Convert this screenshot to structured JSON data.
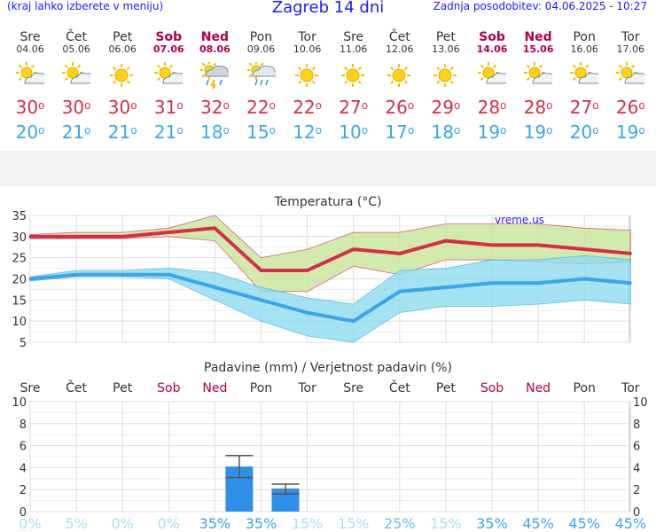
{
  "header": {
    "menu_hint": "(kraj lahko izberete v meniju)",
    "title": "Zagreb 14 dni",
    "updated": "Zadnja posodobitev: 04.06.2025 - 10:27"
  },
  "days": [
    {
      "name": "Sre",
      "date": "04.06",
      "icon": "sun-cloud-icon",
      "tmax": "30",
      "tmin": "20",
      "weekend": false
    },
    {
      "name": "Čet",
      "date": "05.06",
      "icon": "sun-cloud-icon",
      "tmax": "30",
      "tmin": "21",
      "weekend": false
    },
    {
      "name": "Pet",
      "date": "06.06",
      "icon": "sun-icon",
      "tmax": "30",
      "tmin": "21",
      "weekend": false
    },
    {
      "name": "Sob",
      "date": "07.06",
      "icon": "sun-cloud-icon",
      "tmax": "31",
      "tmin": "21",
      "weekend": true
    },
    {
      "name": "Ned",
      "date": "08.06",
      "icon": "thunderstorm-icon",
      "tmax": "32",
      "tmin": "18",
      "weekend": true
    },
    {
      "name": "Pon",
      "date": "09.06",
      "icon": "sun-rain-icon",
      "tmax": "22",
      "tmin": "15",
      "weekend": false
    },
    {
      "name": "Tor",
      "date": "10.06",
      "icon": "sun-icon",
      "tmax": "22",
      "tmin": "12",
      "weekend": false
    },
    {
      "name": "Sre",
      "date": "11.06",
      "icon": "sun-icon",
      "tmax": "27",
      "tmin": "10",
      "weekend": false
    },
    {
      "name": "Čet",
      "date": "12.06",
      "icon": "sun-icon",
      "tmax": "26",
      "tmin": "17",
      "weekend": false
    },
    {
      "name": "Pet",
      "date": "13.06",
      "icon": "sun-icon",
      "tmax": "29",
      "tmin": "18",
      "weekend": false
    },
    {
      "name": "Sob",
      "date": "14.06",
      "icon": "sun-cloud-icon",
      "tmax": "28",
      "tmin": "19",
      "weekend": true
    },
    {
      "name": "Ned",
      "date": "15.06",
      "icon": "sun-cloud-icon",
      "tmax": "28",
      "tmin": "19",
      "weekend": true
    },
    {
      "name": "Pon",
      "date": "16.06",
      "icon": "sun-cloud-icon",
      "tmax": "27",
      "tmin": "20",
      "weekend": false
    },
    {
      "name": "Tor",
      "date": "17.06",
      "icon": "sun-cloud-icon",
      "tmax": "26",
      "tmin": "19",
      "weekend": false
    }
  ],
  "chart_data": [
    {
      "type": "line",
      "title": "Temperatura (°C)",
      "watermark": "vreme.us",
      "ylim": [
        5,
        35
      ],
      "yticks": [
        5,
        10,
        15,
        20,
        25,
        30,
        35
      ],
      "grid": true,
      "series": [
        {
          "key": "max",
          "color": "#d32f4a",
          "values": [
            30,
            30,
            30,
            31,
            32,
            22,
            22,
            27,
            26,
            29,
            28,
            28,
            27,
            26
          ],
          "band_low": [
            29.5,
            29.5,
            29.5,
            30,
            29,
            17,
            17,
            23,
            21,
            24.5,
            24.5,
            24,
            23.5,
            24
          ],
          "band_high": [
            30.5,
            31,
            31,
            32,
            35,
            25,
            27,
            31,
            31,
            33,
            33,
            33,
            32,
            31.5
          ],
          "band_color": "#c7e59a"
        },
        {
          "key": "min",
          "color": "#3aa5e8",
          "values": [
            20,
            21,
            21,
            21,
            18,
            15,
            12,
            10,
            17,
            18,
            19,
            19,
            20,
            19
          ],
          "band_low": [
            19.5,
            20.5,
            20.5,
            20,
            15,
            10,
            6.5,
            5,
            12,
            13.5,
            13.5,
            14,
            15,
            14
          ],
          "band_high": [
            20.5,
            22,
            22,
            22.5,
            21.5,
            18,
            15.5,
            14,
            22,
            22.5,
            24.5,
            24.5,
            25.5,
            24.5
          ],
          "band_color": "#8fdcef"
        }
      ]
    },
    {
      "type": "bar",
      "title": "Padavine (mm) / Verjetnost padavin (%)",
      "ylim": [
        0,
        10
      ],
      "yticks": [
        0,
        2,
        4,
        6,
        8,
        10
      ],
      "categories": [
        "Sre",
        "Čet",
        "Pet",
        "Sob",
        "Ned",
        "Pon",
        "Tor",
        "Sre",
        "Čet",
        "Pet",
        "Sob",
        "Ned",
        "Pon",
        "Tor"
      ],
      "weekend": [
        false,
        false,
        false,
        true,
        true,
        false,
        false,
        false,
        false,
        false,
        true,
        true,
        false,
        false
      ],
      "values": [
        0,
        0,
        0,
        0,
        4.1,
        2.1,
        0,
        0,
        0,
        0,
        0,
        0,
        0,
        0
      ],
      "error_low": [
        null,
        null,
        null,
        null,
        3.1,
        1.6,
        null,
        null,
        null,
        null,
        null,
        null,
        null,
        null
      ],
      "error_high": [
        null,
        null,
        null,
        null,
        5.1,
        2.5,
        null,
        null,
        null,
        null,
        null,
        null,
        null,
        null
      ],
      "probability": [
        "0%",
        "5%",
        "0%",
        "0%",
        "35%",
        "35%",
        "15%",
        "15%",
        "25%",
        "15%",
        "35%",
        "45%",
        "45%",
        "45%"
      ],
      "bar_color": "#2f8ee8"
    }
  ]
}
